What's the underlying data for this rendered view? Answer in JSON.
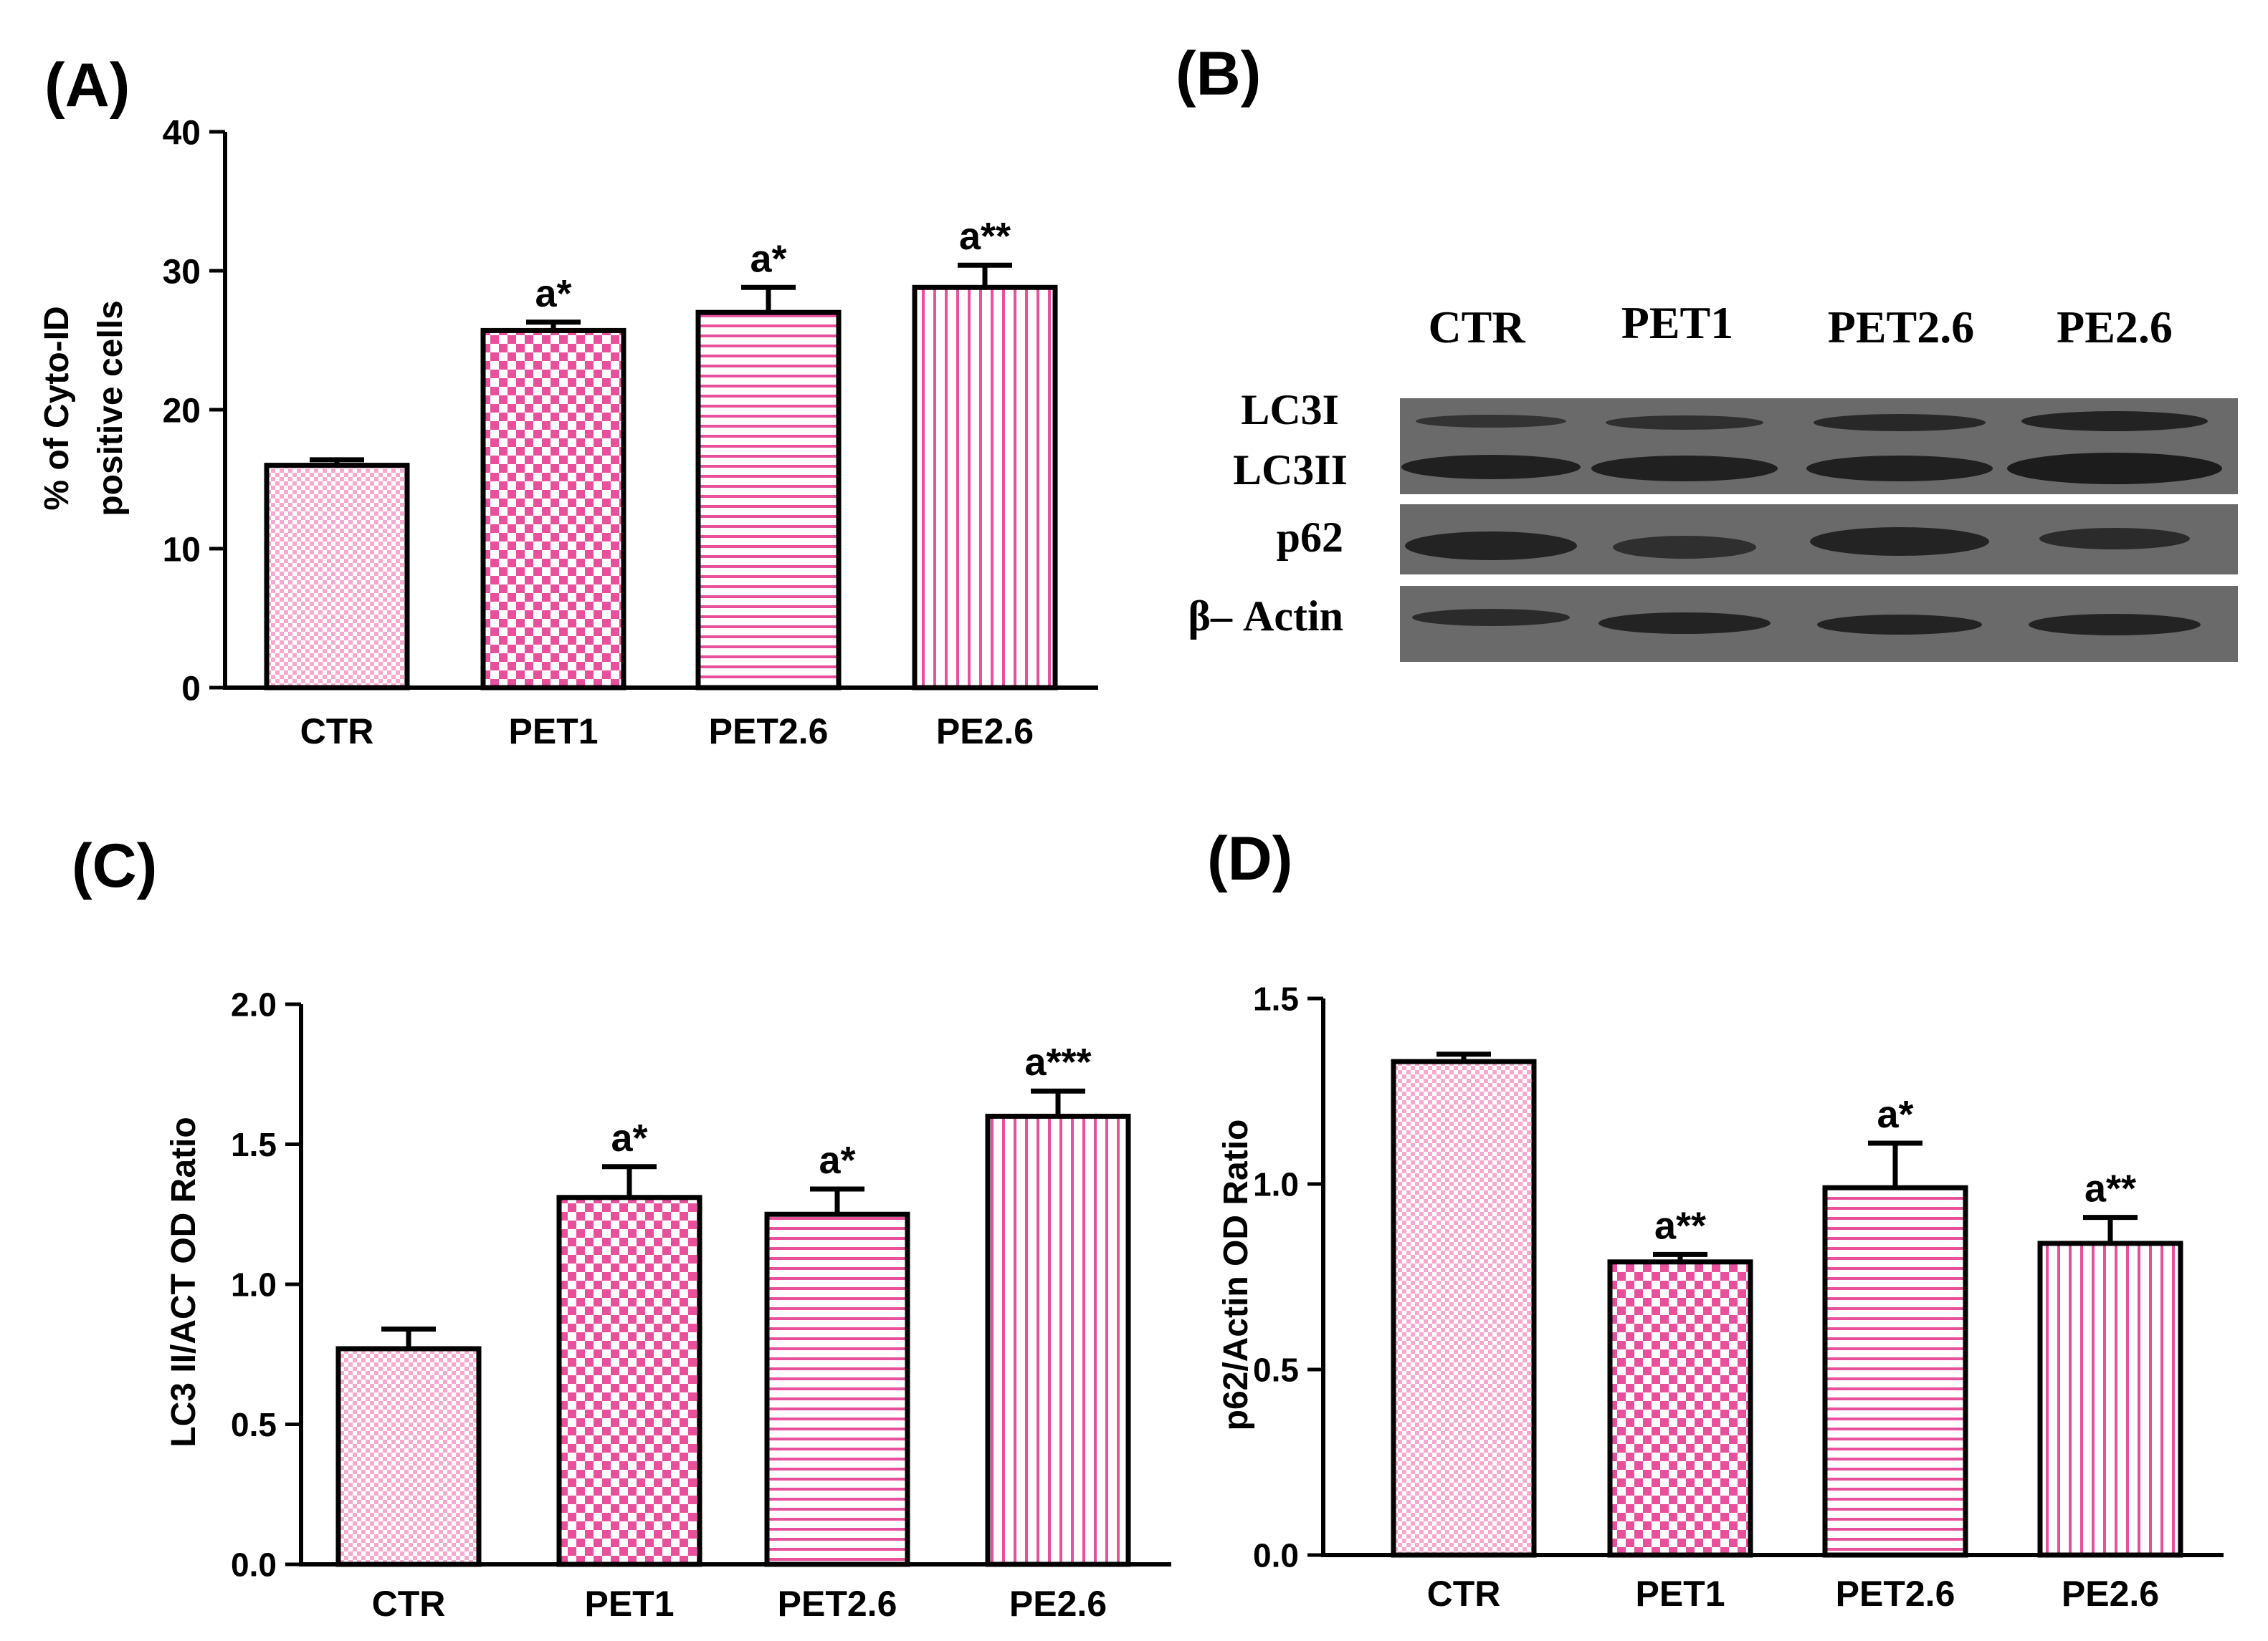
{
  "colors": {
    "bar_pattern": "#e8509b",
    "bar_light": "#f6a9cf",
    "bar_fill_bg": "#ffffff",
    "axis": "#000000",
    "blot_bg": "#6a6a6a",
    "blot_band": "#1c1c1c"
  },
  "chart_data": [
    {
      "panel": "(A)",
      "type": "bar",
      "categories": [
        "CTR",
        "PET1",
        "PET2.6",
        "PE2.6"
      ],
      "values": [
        16,
        25.7,
        27,
        28.8
      ],
      "errors": [
        0.4,
        0.6,
        1.8,
        1.6
      ],
      "annotations": [
        "",
        "a*",
        "a*",
        "a**"
      ],
      "patterns": [
        "dense-check",
        "check",
        "horizontal",
        "vertical"
      ],
      "ylabel_lines": [
        "% of Cyto-ID",
        "positive cells"
      ],
      "ylim": [
        0,
        40
      ],
      "yticks": [
        0,
        10,
        20,
        30,
        40
      ],
      "tick_labels": [
        "0",
        "10",
        "20",
        "30",
        "40"
      ]
    },
    {
      "panel": "(C)",
      "type": "bar",
      "categories": [
        "CTR",
        "PET1",
        "PET2.6",
        "PE2.6"
      ],
      "values": [
        0.77,
        1.31,
        1.25,
        1.6
      ],
      "errors": [
        0.07,
        0.11,
        0.09,
        0.09
      ],
      "annotations": [
        "",
        "a*",
        "a*",
        "a***"
      ],
      "patterns": [
        "dense-check",
        "check",
        "horizontal",
        "vertical"
      ],
      "ylabel_lines": [
        "LC3 II/ACT OD Ratio"
      ],
      "ylim": [
        0,
        2.0
      ],
      "yticks": [
        0,
        0.5,
        1.0,
        1.5,
        2.0
      ],
      "tick_labels": [
        "0.0",
        "0.5",
        "1.0",
        "1.5",
        "2.0"
      ]
    },
    {
      "panel": "(D)",
      "type": "bar",
      "categories": [
        "CTR",
        "PET1",
        "PET2.6",
        "PE2.6"
      ],
      "values": [
        1.33,
        0.79,
        0.99,
        0.84
      ],
      "errors": [
        0.02,
        0.02,
        0.12,
        0.07
      ],
      "annotations": [
        "",
        "a**",
        "a*",
        "a**"
      ],
      "patterns": [
        "dense-check",
        "check",
        "horizontal",
        "vertical"
      ],
      "ylabel_lines": [
        "p62/Actin OD Ratio"
      ],
      "ylim": [
        0,
        1.5
      ],
      "yticks": [
        0,
        0.5,
        1.0,
        1.5
      ],
      "tick_labels": [
        "0.0",
        "0.5",
        "1.0",
        "1.5"
      ]
    }
  ],
  "western_blot": {
    "panel": "(B)",
    "lanes": [
      "CTR",
      "PET1",
      "PET2.6",
      "PE2.6"
    ],
    "rows": [
      "LC3I",
      "LC3II",
      "p62",
      "β– Actin"
    ]
  }
}
